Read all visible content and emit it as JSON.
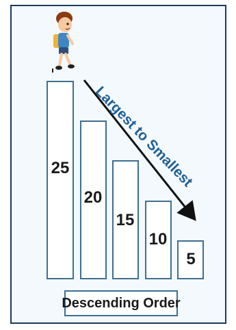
{
  "diagram": {
    "arrow_label": "Largest to Smallest",
    "caption": "Descending Order",
    "bars": [
      {
        "value": "25"
      },
      {
        "value": "20"
      },
      {
        "value": "15"
      },
      {
        "value": "10"
      },
      {
        "value": "5"
      }
    ],
    "colors": {
      "bar_border": "#3d6f8f",
      "arrow_text": "#1f5f96",
      "frame_border": "#1b3a57"
    },
    "icons": [
      "cartoon-boy-icon"
    ]
  }
}
